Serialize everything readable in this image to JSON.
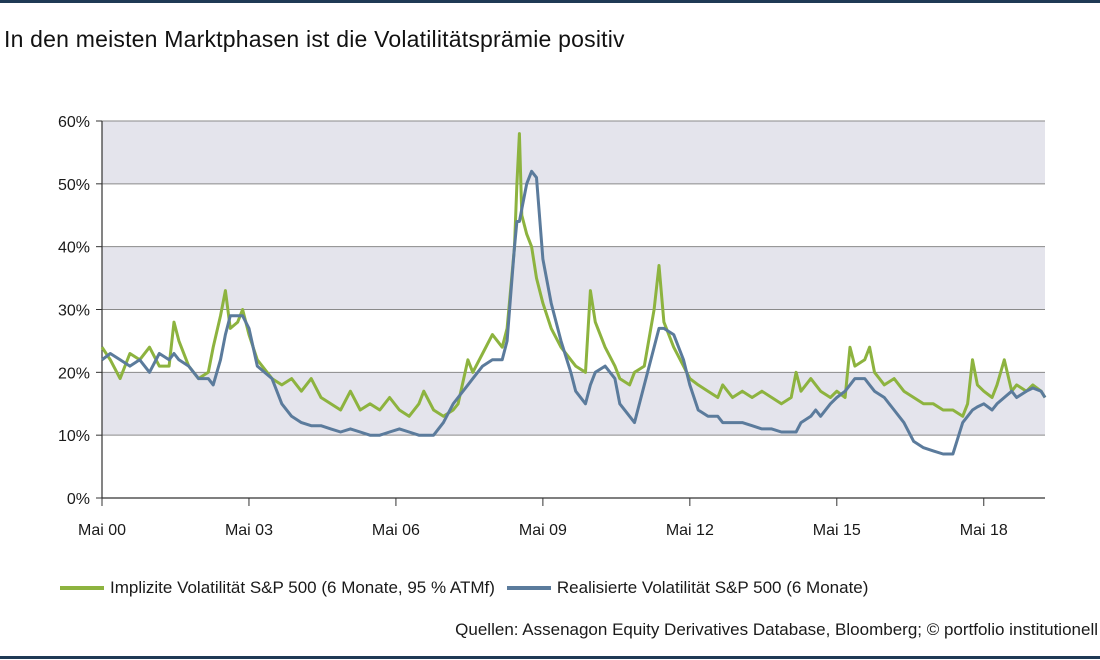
{
  "title": "In den meisten Marktphasen ist die Volatilitätsprämie positiv",
  "source": "Quellen: Assenagon Equity Derivatives Database, Bloomberg; © portfolio institutionell",
  "chart_data": {
    "type": "line",
    "title": "In den meisten Marktphasen ist die Volatilitätsprämie positiv",
    "xlabel": "",
    "ylabel": "",
    "x_tick_labels": [
      "Mai 00",
      "Mai 03",
      "Mai 06",
      "Mai 09",
      "Mai 12",
      "Mai 15",
      "Mai 18"
    ],
    "y_tick_labels": [
      "0%",
      "10%",
      "20%",
      "30%",
      "40%",
      "50%",
      "60%"
    ],
    "y_ticks": [
      0,
      10,
      20,
      30,
      40,
      50,
      60
    ],
    "ylim": [
      0,
      60
    ],
    "x_range_years": [
      2000.33,
      2019.58
    ],
    "grid": "horizontal bands",
    "legend_position": "bottom",
    "series": [
      {
        "name": "Implizite Volatilität S&P 500 (6 Monate, 95 % ATMf)",
        "color": "#8db33f",
        "points": [
          [
            2000.33,
            24
          ],
          [
            2000.5,
            22
          ],
          [
            2000.7,
            19
          ],
          [
            2000.9,
            23
          ],
          [
            2001.1,
            22
          ],
          [
            2001.3,
            24
          ],
          [
            2001.5,
            21
          ],
          [
            2001.7,
            21
          ],
          [
            2001.8,
            28
          ],
          [
            2001.9,
            25
          ],
          [
            2002.1,
            21
          ],
          [
            2002.3,
            19
          ],
          [
            2002.5,
            20
          ],
          [
            2002.6,
            24
          ],
          [
            2002.75,
            29
          ],
          [
            2002.85,
            33
          ],
          [
            2002.95,
            27
          ],
          [
            2003.1,
            28
          ],
          [
            2003.2,
            30
          ],
          [
            2003.33,
            26
          ],
          [
            2003.5,
            22
          ],
          [
            2003.8,
            19
          ],
          [
            2004.0,
            18
          ],
          [
            2004.2,
            19
          ],
          [
            2004.4,
            17
          ],
          [
            2004.6,
            19
          ],
          [
            2004.8,
            16
          ],
          [
            2005.0,
            15
          ],
          [
            2005.2,
            14
          ],
          [
            2005.4,
            17
          ],
          [
            2005.6,
            14
          ],
          [
            2005.8,
            15
          ],
          [
            2006.0,
            14
          ],
          [
            2006.2,
            16
          ],
          [
            2006.4,
            14
          ],
          [
            2006.6,
            13
          ],
          [
            2006.8,
            15
          ],
          [
            2006.9,
            17
          ],
          [
            2007.1,
            14
          ],
          [
            2007.3,
            13
          ],
          [
            2007.5,
            14
          ],
          [
            2007.6,
            15
          ],
          [
            2007.8,
            22
          ],
          [
            2007.9,
            20
          ],
          [
            2008.1,
            23
          ],
          [
            2008.3,
            26
          ],
          [
            2008.5,
            24
          ],
          [
            2008.6,
            27
          ],
          [
            2008.75,
            40
          ],
          [
            2008.8,
            50
          ],
          [
            2008.85,
            58
          ],
          [
            2008.9,
            45
          ],
          [
            2009.0,
            42
          ],
          [
            2009.1,
            40
          ],
          [
            2009.2,
            35
          ],
          [
            2009.33,
            31
          ],
          [
            2009.5,
            27
          ],
          [
            2009.7,
            24
          ],
          [
            2009.9,
            22
          ],
          [
            2010.0,
            21
          ],
          [
            2010.2,
            20
          ],
          [
            2010.3,
            33
          ],
          [
            2010.4,
            28
          ],
          [
            2010.6,
            24
          ],
          [
            2010.8,
            21
          ],
          [
            2010.9,
            19
          ],
          [
            2011.1,
            18
          ],
          [
            2011.2,
            20
          ],
          [
            2011.4,
            21
          ],
          [
            2011.6,
            30
          ],
          [
            2011.7,
            37
          ],
          [
            2011.8,
            28
          ],
          [
            2012.0,
            24
          ],
          [
            2012.2,
            21
          ],
          [
            2012.33,
            19
          ],
          [
            2012.5,
            18
          ],
          [
            2012.7,
            17
          ],
          [
            2012.9,
            16
          ],
          [
            2013.0,
            18
          ],
          [
            2013.2,
            16
          ],
          [
            2013.4,
            17
          ],
          [
            2013.6,
            16
          ],
          [
            2013.8,
            17
          ],
          [
            2014.0,
            16
          ],
          [
            2014.2,
            15
          ],
          [
            2014.4,
            16
          ],
          [
            2014.5,
            20
          ],
          [
            2014.6,
            17
          ],
          [
            2014.8,
            19
          ],
          [
            2015.0,
            17
          ],
          [
            2015.2,
            16
          ],
          [
            2015.33,
            17
          ],
          [
            2015.5,
            16
          ],
          [
            2015.6,
            24
          ],
          [
            2015.7,
            21
          ],
          [
            2015.9,
            22
          ],
          [
            2016.0,
            24
          ],
          [
            2016.1,
            20
          ],
          [
            2016.3,
            18
          ],
          [
            2016.5,
            19
          ],
          [
            2016.7,
            17
          ],
          [
            2016.9,
            16
          ],
          [
            2017.1,
            15
          ],
          [
            2017.3,
            15
          ],
          [
            2017.5,
            14
          ],
          [
            2017.7,
            14
          ],
          [
            2017.9,
            13
          ],
          [
            2018.0,
            15
          ],
          [
            2018.1,
            22
          ],
          [
            2018.2,
            18
          ],
          [
            2018.33,
            17
          ],
          [
            2018.5,
            16
          ],
          [
            2018.6,
            18
          ],
          [
            2018.75,
            22
          ],
          [
            2018.9,
            17
          ],
          [
            2019.0,
            18
          ],
          [
            2019.2,
            17
          ],
          [
            2019.33,
            18
          ],
          [
            2019.5,
            17
          ],
          [
            2019.58,
            16
          ]
        ]
      },
      {
        "name": "Realisierte Volatilität S&P 500 (6 Monate)",
        "color": "#5b7b9c",
        "points": [
          [
            2000.33,
            22
          ],
          [
            2000.5,
            23
          ],
          [
            2000.7,
            22
          ],
          [
            2000.9,
            21
          ],
          [
            2001.1,
            22
          ],
          [
            2001.3,
            20
          ],
          [
            2001.5,
            23
          ],
          [
            2001.7,
            22
          ],
          [
            2001.8,
            23
          ],
          [
            2001.9,
            22
          ],
          [
            2002.1,
            21
          ],
          [
            2002.3,
            19
          ],
          [
            2002.5,
            19
          ],
          [
            2002.6,
            18
          ],
          [
            2002.75,
            22
          ],
          [
            2002.85,
            26
          ],
          [
            2002.95,
            29
          ],
          [
            2003.1,
            29
          ],
          [
            2003.2,
            29
          ],
          [
            2003.33,
            27
          ],
          [
            2003.5,
            21
          ],
          [
            2003.8,
            19
          ],
          [
            2004.0,
            15
          ],
          [
            2004.2,
            13
          ],
          [
            2004.4,
            12
          ],
          [
            2004.6,
            11.5
          ],
          [
            2004.8,
            11.5
          ],
          [
            2005.0,
            11
          ],
          [
            2005.2,
            10.5
          ],
          [
            2005.4,
            11
          ],
          [
            2005.6,
            10.5
          ],
          [
            2005.8,
            10
          ],
          [
            2006.0,
            10
          ],
          [
            2006.2,
            10.5
          ],
          [
            2006.4,
            11
          ],
          [
            2006.6,
            10.5
          ],
          [
            2006.8,
            10
          ],
          [
            2006.9,
            10
          ],
          [
            2007.1,
            10
          ],
          [
            2007.3,
            12
          ],
          [
            2007.5,
            15
          ],
          [
            2007.6,
            16
          ],
          [
            2007.8,
            18
          ],
          [
            2007.9,
            19
          ],
          [
            2008.1,
            21
          ],
          [
            2008.3,
            22
          ],
          [
            2008.5,
            22
          ],
          [
            2008.6,
            25
          ],
          [
            2008.75,
            40
          ],
          [
            2008.8,
            44
          ],
          [
            2008.85,
            44
          ],
          [
            2008.9,
            46
          ],
          [
            2009.0,
            50
          ],
          [
            2009.1,
            52
          ],
          [
            2009.2,
            51
          ],
          [
            2009.33,
            38
          ],
          [
            2009.5,
            31
          ],
          [
            2009.7,
            25
          ],
          [
            2009.9,
            20
          ],
          [
            2010.0,
            17
          ],
          [
            2010.2,
            15
          ],
          [
            2010.3,
            18
          ],
          [
            2010.4,
            20
          ],
          [
            2010.6,
            21
          ],
          [
            2010.8,
            19
          ],
          [
            2010.9,
            15
          ],
          [
            2011.1,
            13
          ],
          [
            2011.2,
            12
          ],
          [
            2011.4,
            18
          ],
          [
            2011.6,
            24
          ],
          [
            2011.7,
            27
          ],
          [
            2011.8,
            27
          ],
          [
            2012.0,
            26
          ],
          [
            2012.2,
            22
          ],
          [
            2012.33,
            18
          ],
          [
            2012.5,
            14
          ],
          [
            2012.7,
            13
          ],
          [
            2012.9,
            13
          ],
          [
            2013.0,
            12
          ],
          [
            2013.2,
            12
          ],
          [
            2013.4,
            12
          ],
          [
            2013.6,
            11.5
          ],
          [
            2013.8,
            11
          ],
          [
            2014.0,
            11
          ],
          [
            2014.2,
            10.5
          ],
          [
            2014.4,
            10.5
          ],
          [
            2014.5,
            10.5
          ],
          [
            2014.6,
            12
          ],
          [
            2014.8,
            13
          ],
          [
            2014.9,
            14
          ],
          [
            2015.0,
            13
          ],
          [
            2015.2,
            15
          ],
          [
            2015.33,
            16
          ],
          [
            2015.5,
            17
          ],
          [
            2015.6,
            18
          ],
          [
            2015.7,
            19
          ],
          [
            2015.9,
            19
          ],
          [
            2016.0,
            18
          ],
          [
            2016.1,
            17
          ],
          [
            2016.3,
            16
          ],
          [
            2016.5,
            14
          ],
          [
            2016.7,
            12
          ],
          [
            2016.9,
            9
          ],
          [
            2017.1,
            8
          ],
          [
            2017.3,
            7.5
          ],
          [
            2017.5,
            7
          ],
          [
            2017.7,
            7
          ],
          [
            2017.9,
            12
          ],
          [
            2018.0,
            13
          ],
          [
            2018.1,
            14
          ],
          [
            2018.2,
            14.5
          ],
          [
            2018.33,
            15
          ],
          [
            2018.5,
            14
          ],
          [
            2018.6,
            15
          ],
          [
            2018.75,
            16
          ],
          [
            2018.9,
            17
          ],
          [
            2019.0,
            16
          ],
          [
            2019.2,
            17
          ],
          [
            2019.33,
            17.5
          ],
          [
            2019.5,
            17
          ],
          [
            2019.58,
            16
          ]
        ]
      }
    ]
  }
}
